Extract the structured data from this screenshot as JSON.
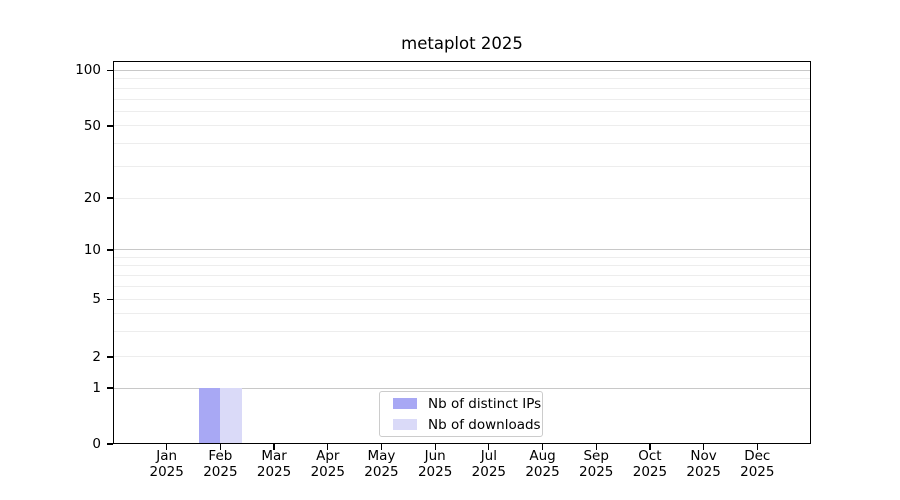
{
  "chart_data": {
    "type": "bar",
    "title": "metaplot 2025",
    "categories": [
      {
        "month": "Jan",
        "year": "2025"
      },
      {
        "month": "Feb",
        "year": "2025"
      },
      {
        "month": "Mar",
        "year": "2025"
      },
      {
        "month": "Apr",
        "year": "2025"
      },
      {
        "month": "May",
        "year": "2025"
      },
      {
        "month": "Jun",
        "year": "2025"
      },
      {
        "month": "Jul",
        "year": "2025"
      },
      {
        "month": "Aug",
        "year": "2025"
      },
      {
        "month": "Sep",
        "year": "2025"
      },
      {
        "month": "Oct",
        "year": "2025"
      },
      {
        "month": "Nov",
        "year": "2025"
      },
      {
        "month": "Dec",
        "year": "2025"
      }
    ],
    "series": [
      {
        "name": "Nb of distinct IPs",
        "color": "#a8a8f4",
        "values": [
          0,
          1,
          0,
          0,
          0,
          0,
          0,
          0,
          0,
          0,
          0,
          0
        ]
      },
      {
        "name": "Nb of downloads",
        "color": "#dadaf8",
        "values": [
          0,
          1,
          0,
          0,
          0,
          0,
          0,
          0,
          0,
          0,
          0,
          0
        ]
      }
    ],
    "y_axis": {
      "scale": "symlog",
      "ylim": [
        0,
        115
      ],
      "ticks": [
        {
          "value": 100,
          "frac": 0.0235
        },
        {
          "value": 50,
          "frac": 0.1686
        },
        {
          "value": 20,
          "frac": 0.3569
        },
        {
          "value": 10,
          "frac": 0.4928
        },
        {
          "value": 5,
          "frac": 0.6222
        },
        {
          "value": 2,
          "frac": 0.7725
        },
        {
          "value": 1,
          "frac": 0.8536
        },
        {
          "value": 0,
          "frac": 1.0
        }
      ],
      "major_gridline_values": [
        100,
        10,
        1
      ],
      "minor_gridline_values": [
        90,
        80,
        70,
        60,
        50,
        40,
        30,
        20,
        9,
        8,
        7,
        6,
        5,
        4,
        3,
        2
      ]
    },
    "legend": {
      "position": "lower center",
      "entries": [
        "Nb of distinct IPs",
        "Nb of downloads"
      ]
    },
    "grid": "horizontal",
    "colors": {
      "spine": "#000000",
      "text": "#000000",
      "grid_major": "#c8c8c8",
      "grid_minor": "#ededed",
      "legend_border": "#cccccc",
      "background": "#ffffff"
    }
  }
}
